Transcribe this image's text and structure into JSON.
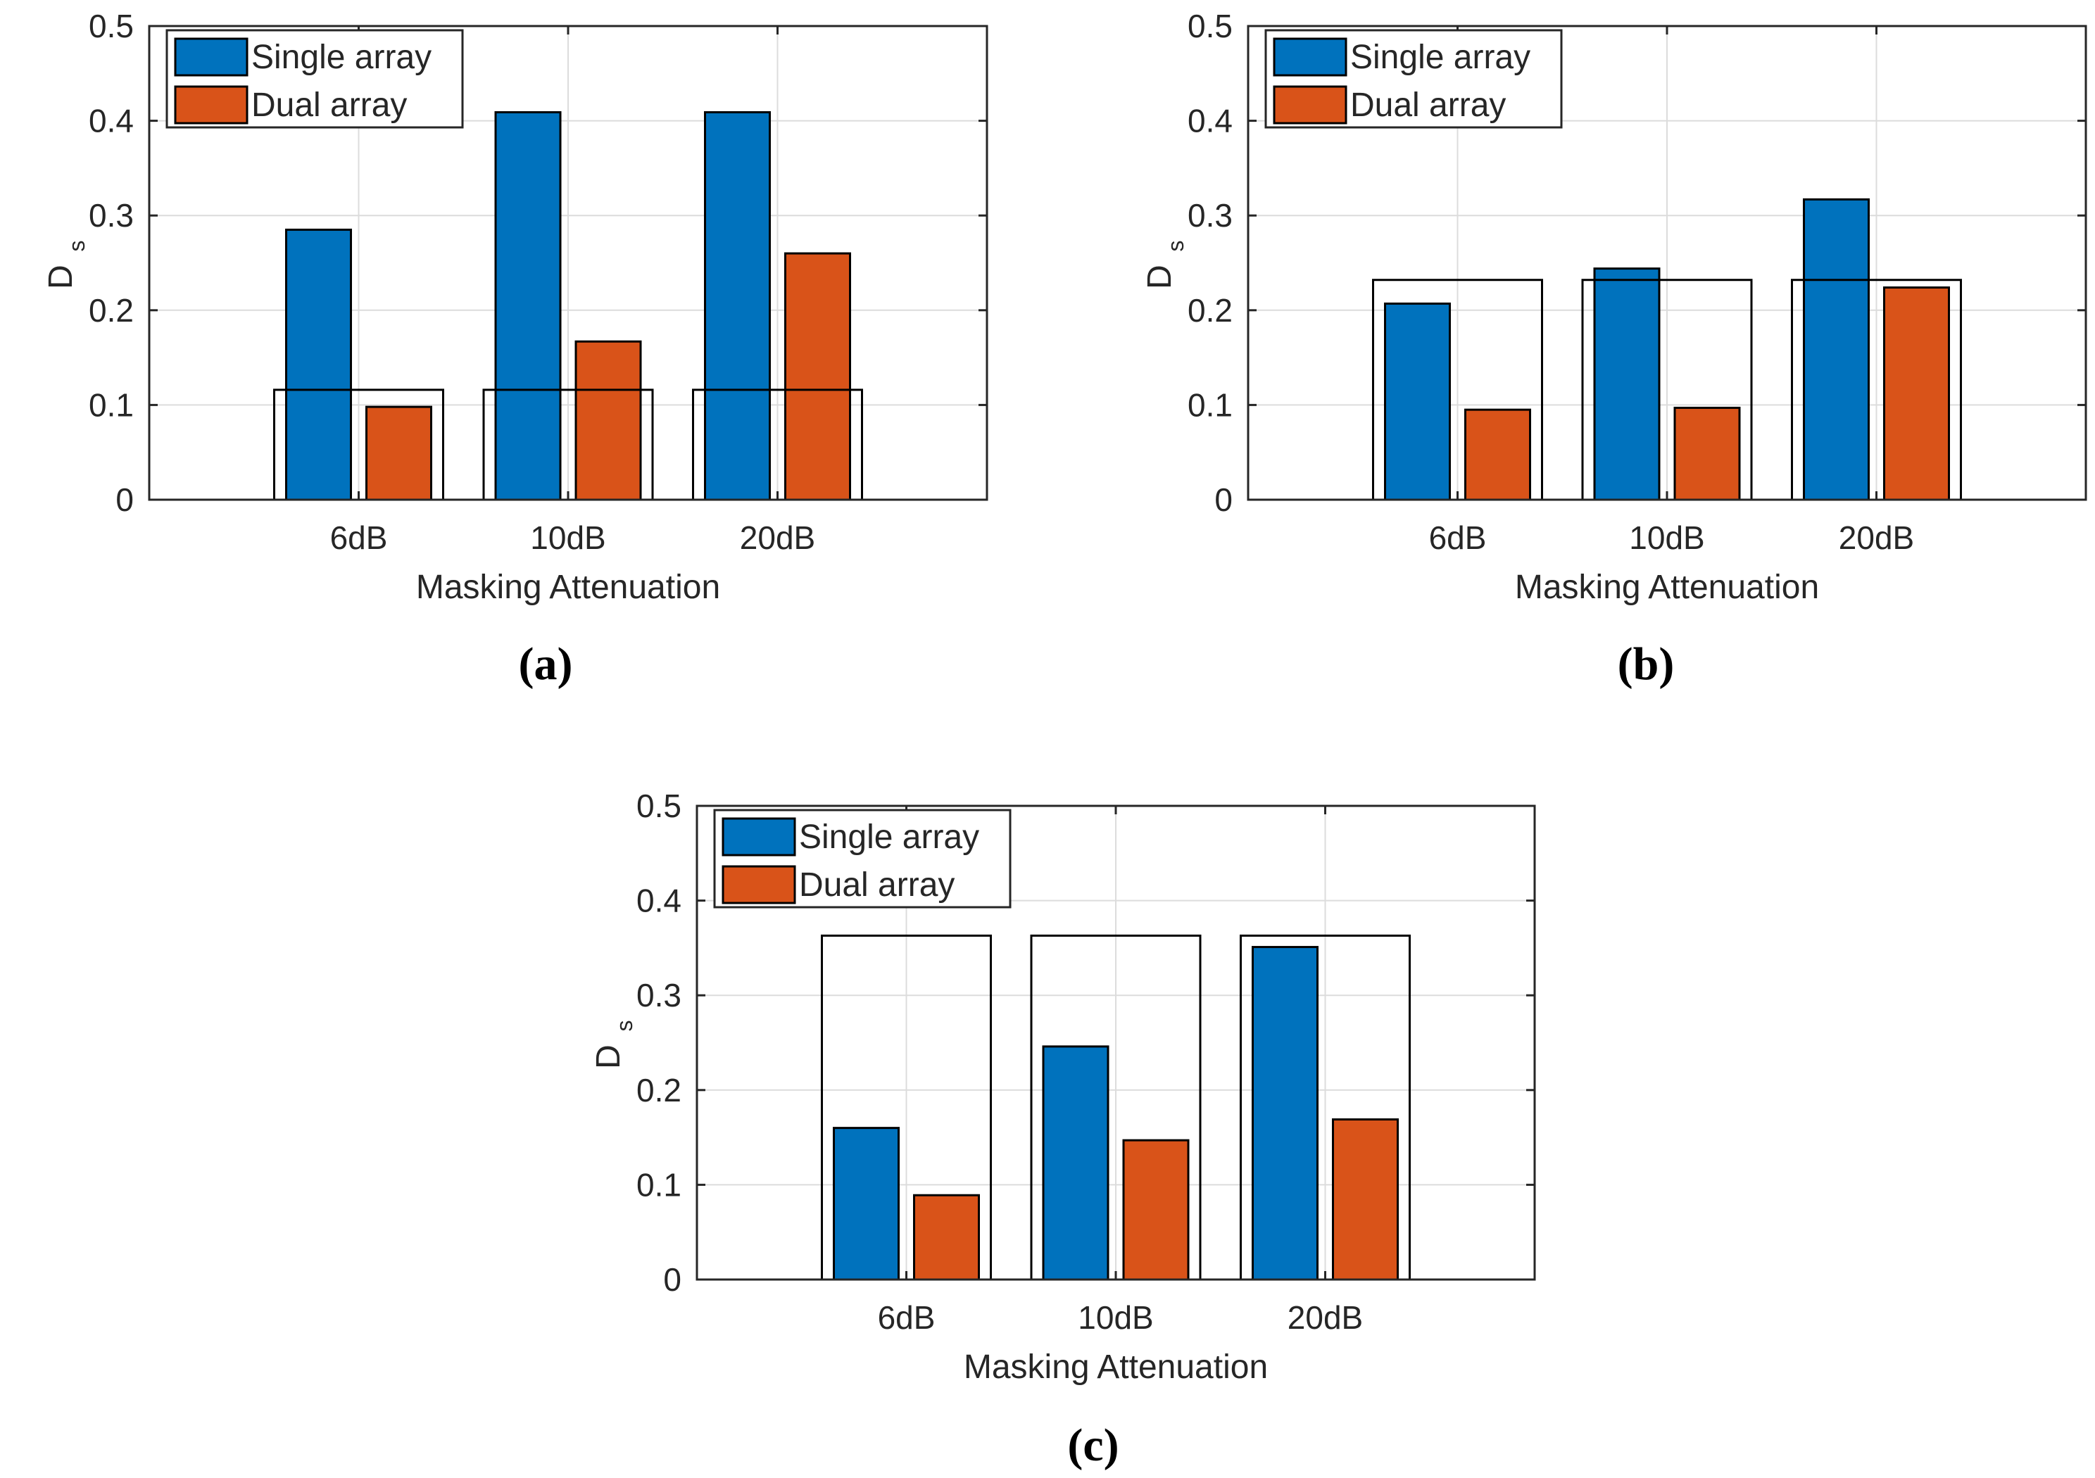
{
  "colors": {
    "single": "#0072BD",
    "dual": "#D95319",
    "grid": "#DCDCDC",
    "axis": "#262626",
    "threshold_box": "#000000"
  },
  "chart_data": [
    {
      "type": "bar",
      "panel_label": "(a)",
      "categories": [
        "6dB",
        "10dB",
        "20dB"
      ],
      "series": [
        {
          "name": "Single array",
          "values": [
            0.285,
            0.409,
            0.409
          ]
        },
        {
          "name": "Dual array",
          "values": [
            0.098,
            0.167,
            0.26
          ]
        }
      ],
      "threshold": 0.116,
      "xlabel": "Masking Attenuation",
      "ylabel": "D",
      "ylabel_sub": "s",
      "ylim": [
        0,
        0.5
      ],
      "yticks": [
        "0",
        "0.1",
        "0.2",
        "0.3",
        "0.4",
        "0.5"
      ],
      "grid": true,
      "legend": "top-left"
    },
    {
      "type": "bar",
      "panel_label": "(b)",
      "categories": [
        "6dB",
        "10dB",
        "20dB"
      ],
      "series": [
        {
          "name": "Single array",
          "values": [
            0.207,
            0.244,
            0.317
          ]
        },
        {
          "name": "Dual array",
          "values": [
            0.095,
            0.097,
            0.224
          ]
        }
      ],
      "threshold": 0.232,
      "xlabel": "Masking Attenuation",
      "ylabel": "D",
      "ylabel_sub": "s",
      "ylim": [
        0,
        0.5
      ],
      "yticks": [
        "0",
        "0.1",
        "0.2",
        "0.3",
        "0.4",
        "0.5"
      ],
      "grid": true,
      "legend": "top-left"
    },
    {
      "type": "bar",
      "panel_label": "(c)",
      "categories": [
        "6dB",
        "10dB",
        "20dB"
      ],
      "series": [
        {
          "name": "Single array",
          "values": [
            0.16,
            0.246,
            0.351
          ]
        },
        {
          "name": "Dual array",
          "values": [
            0.089,
            0.147,
            0.169
          ]
        }
      ],
      "threshold": 0.363,
      "xlabel": "Masking Attenuation",
      "ylabel": "D",
      "ylabel_sub": "s",
      "ylim": [
        0,
        0.5
      ],
      "yticks": [
        "0",
        "0.1",
        "0.2",
        "0.3",
        "0.4",
        "0.5"
      ],
      "grid": true,
      "legend": "top-left"
    }
  ]
}
